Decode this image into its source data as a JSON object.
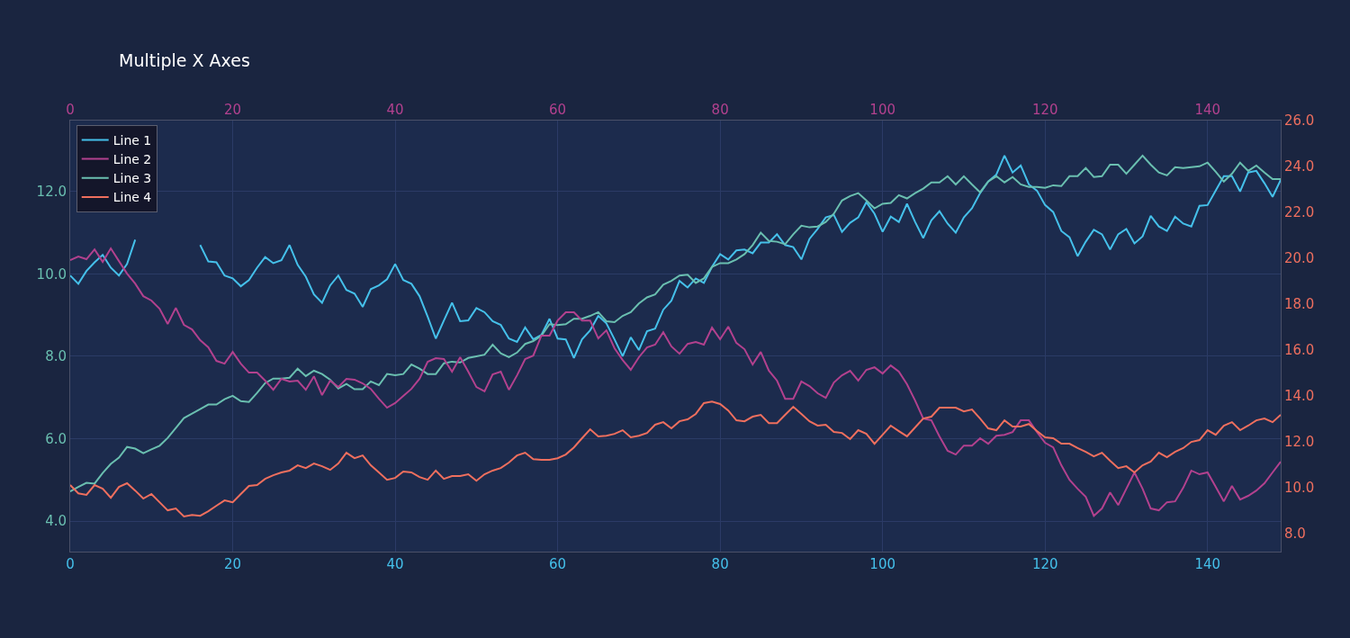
{
  "chart_data": {
    "type": "line",
    "title": "Multiple X Axes",
    "x": [
      0,
      1,
      2,
      3,
      4,
      5,
      6,
      7,
      8,
      9,
      10,
      11,
      12,
      13,
      14,
      15,
      16,
      17,
      18,
      19,
      20,
      21,
      22,
      23,
      24,
      25,
      26,
      27,
      28,
      29,
      30,
      31,
      32,
      33,
      34,
      35,
      36,
      37,
      38,
      39,
      40,
      41,
      42,
      43,
      44,
      45,
      46,
      47,
      48,
      49,
      50,
      51,
      52,
      53,
      54,
      55,
      56,
      57,
      58,
      59,
      60,
      61,
      62,
      63,
      64,
      65,
      66,
      67,
      68,
      69,
      70,
      71,
      72,
      73,
      74,
      75,
      76,
      77,
      78,
      79,
      80,
      81,
      82,
      83,
      84,
      85,
      86,
      87,
      88,
      89,
      90,
      91,
      92,
      93,
      94,
      95,
      96,
      97,
      98,
      99,
      100,
      101,
      102,
      103,
      104,
      105,
      106,
      107,
      108,
      109,
      110,
      111,
      112,
      113,
      114,
      115,
      116,
      117,
      118,
      119,
      120,
      121,
      122,
      123,
      124,
      125,
      126,
      127,
      128,
      129,
      130,
      131,
      132,
      133,
      134,
      135,
      136,
      137,
      138,
      139,
      140,
      141,
      142,
      143,
      144,
      145,
      146,
      147,
      148,
      149
    ],
    "series": [
      {
        "name": "Line 1",
        "color": "#45c0ea",
        "values": [
          9.96,
          9.76,
          10.07,
          10.28,
          10.46,
          10.15,
          9.96,
          10.24,
          10.83,
          null,
          null,
          null,
          null,
          null,
          null,
          null,
          10.7,
          10.3,
          10.28,
          9.96,
          9.89,
          9.7,
          9.85,
          10.15,
          10.41,
          10.26,
          10.33,
          10.7,
          10.22,
          9.93,
          9.5,
          9.3,
          9.72,
          9.96,
          9.61,
          9.52,
          9.2,
          9.63,
          9.72,
          9.87,
          10.24,
          9.85,
          9.76,
          9.46,
          8.96,
          8.43,
          8.87,
          9.3,
          8.85,
          8.87,
          9.17,
          9.07,
          8.85,
          8.76,
          8.43,
          8.35,
          8.7,
          8.41,
          8.52,
          8.91,
          8.43,
          8.41,
          7.96,
          8.41,
          8.63,
          8.98,
          8.8,
          8.41,
          8.0,
          8.46,
          8.15,
          8.61,
          8.67,
          9.13,
          9.35,
          9.83,
          9.67,
          9.89,
          9.78,
          10.17,
          10.48,
          10.35,
          10.57,
          10.59,
          10.5,
          10.76,
          10.76,
          10.96,
          10.7,
          10.65,
          10.35,
          10.85,
          11.09,
          11.37,
          11.43,
          11.02,
          11.24,
          11.37,
          11.74,
          11.46,
          11.02,
          11.39,
          11.26,
          11.7,
          11.26,
          10.87,
          11.3,
          11.52,
          11.22,
          11.0,
          11.37,
          11.59,
          11.96,
          12.24,
          12.41,
          12.87,
          12.46,
          12.63,
          12.17,
          12.02,
          11.67,
          11.5,
          11.04,
          10.89,
          10.43,
          10.78,
          11.07,
          10.96,
          10.59,
          10.96,
          11.09,
          10.74,
          10.91,
          11.41,
          11.15,
          11.04,
          11.39,
          11.22,
          11.15,
          11.65,
          11.67,
          12.02,
          12.37,
          12.37,
          12.0,
          12.46,
          12.5,
          12.2,
          11.87,
          12.28
        ]
      },
      {
        "name": "Line 2",
        "color": "#b2418e",
        "axis": "y2",
        "values": [
          19.92,
          20.08,
          19.96,
          20.39,
          19.84,
          20.43,
          19.88,
          19.33,
          18.9,
          18.35,
          18.16,
          17.8,
          17.14,
          17.84,
          17.1,
          16.9,
          16.43,
          16.12,
          15.53,
          15.41,
          15.92,
          15.41,
          15.02,
          15.02,
          14.67,
          14.27,
          14.75,
          14.63,
          14.67,
          14.27,
          14.86,
          14.04,
          14.67,
          14.39,
          14.75,
          14.71,
          14.55,
          14.31,
          13.88,
          13.49,
          13.69,
          14.0,
          14.31,
          14.75,
          15.49,
          15.65,
          15.61,
          15.06,
          15.69,
          15.06,
          14.39,
          14.2,
          14.94,
          15.06,
          14.27,
          14.9,
          15.61,
          15.76,
          16.63,
          16.63,
          17.29,
          17.65,
          17.65,
          17.29,
          17.29,
          16.51,
          16.86,
          16.08,
          15.57,
          15.14,
          15.69,
          16.12,
          16.24,
          16.78,
          16.16,
          15.84,
          16.27,
          16.35,
          16.24,
          16.98,
          16.47,
          17.02,
          16.31,
          16.04,
          15.37,
          15.92,
          15.1,
          14.67,
          13.88,
          13.88,
          14.63,
          14.43,
          14.12,
          13.92,
          14.59,
          14.9,
          15.1,
          14.67,
          15.14,
          15.25,
          14.98,
          15.33,
          15.06,
          14.51,
          13.8,
          13.02,
          12.94,
          12.24,
          11.61,
          11.45,
          11.84,
          11.84,
          12.16,
          11.92,
          12.27,
          12.31,
          12.43,
          12.94,
          12.94,
          12.43,
          11.96,
          11.76,
          10.98,
          10.35,
          9.96,
          9.61,
          8.78,
          9.1,
          9.8,
          9.25,
          9.96,
          10.67,
          9.96,
          9.1,
          9.02,
          9.37,
          9.41,
          10.0,
          10.75,
          10.59,
          10.67,
          10.04,
          9.41,
          10.08,
          9.49,
          9.65,
          9.88,
          10.2,
          10.67,
          11.14
        ]
      },
      {
        "name": "Line 3",
        "color": "#6abfb0",
        "values": [
          4.72,
          4.83,
          4.93,
          4.91,
          5.17,
          5.39,
          5.54,
          5.8,
          5.76,
          5.65,
          5.74,
          5.83,
          6.02,
          6.26,
          6.5,
          6.61,
          6.72,
          6.83,
          6.83,
          6.96,
          7.04,
          6.91,
          6.89,
          7.11,
          7.35,
          7.46,
          7.46,
          7.48,
          7.7,
          7.52,
          7.65,
          7.57,
          7.43,
          7.22,
          7.33,
          7.2,
          7.2,
          7.39,
          7.3,
          7.57,
          7.54,
          7.57,
          7.8,
          7.7,
          7.57,
          7.57,
          7.83,
          7.87,
          7.85,
          7.96,
          8.0,
          8.04,
          8.28,
          8.07,
          7.98,
          8.09,
          8.3,
          8.37,
          8.5,
          8.78,
          8.76,
          8.78,
          8.91,
          8.91,
          8.98,
          9.07,
          8.85,
          8.83,
          8.98,
          9.07,
          9.28,
          9.43,
          9.5,
          9.74,
          9.83,
          9.96,
          9.98,
          9.78,
          9.89,
          10.17,
          10.26,
          10.26,
          10.35,
          10.48,
          10.7,
          11.0,
          10.8,
          10.78,
          10.72,
          10.96,
          11.17,
          11.13,
          11.15,
          11.26,
          11.46,
          11.78,
          11.89,
          11.96,
          11.78,
          11.59,
          11.7,
          11.72,
          11.91,
          11.83,
          11.96,
          12.07,
          12.22,
          12.22,
          12.37,
          12.17,
          12.37,
          12.17,
          11.98,
          12.24,
          12.37,
          12.22,
          12.35,
          12.17,
          12.11,
          12.11,
          12.09,
          12.15,
          12.13,
          12.37,
          12.37,
          12.57,
          12.35,
          12.37,
          12.65,
          12.65,
          12.43,
          12.65,
          12.87,
          12.65,
          12.46,
          12.39,
          12.59,
          12.57,
          12.59,
          12.61,
          12.7,
          12.48,
          12.24,
          12.43,
          12.7,
          12.5,
          12.63,
          12.46,
          12.3,
          12.3
        ]
      },
      {
        "name": "Line 4",
        "color": "#ef6f5e",
        "axis": "y2",
        "values": [
          10.12,
          9.76,
          9.69,
          10.12,
          9.96,
          9.57,
          10.04,
          10.2,
          9.88,
          9.53,
          9.73,
          9.37,
          9.02,
          9.1,
          8.75,
          8.82,
          8.78,
          8.98,
          9.22,
          9.45,
          9.37,
          9.73,
          10.08,
          10.12,
          10.39,
          10.55,
          10.67,
          10.75,
          10.98,
          10.86,
          11.06,
          10.94,
          10.78,
          11.06,
          11.53,
          11.29,
          11.41,
          10.98,
          10.67,
          10.35,
          10.43,
          10.71,
          10.67,
          10.47,
          10.35,
          10.75,
          10.39,
          10.51,
          10.51,
          10.59,
          10.31,
          10.59,
          10.75,
          10.86,
          11.1,
          11.41,
          11.53,
          11.25,
          11.22,
          11.22,
          11.29,
          11.45,
          11.76,
          12.16,
          12.55,
          12.24,
          12.27,
          12.35,
          12.51,
          12.2,
          12.27,
          12.39,
          12.75,
          12.86,
          12.59,
          12.9,
          12.98,
          13.22,
          13.69,
          13.76,
          13.65,
          13.37,
          12.94,
          12.9,
          13.1,
          13.18,
          12.82,
          12.82,
          13.18,
          13.53,
          13.22,
          12.9,
          12.71,
          12.75,
          12.43,
          12.39,
          12.12,
          12.51,
          12.35,
          11.92,
          12.31,
          12.71,
          12.47,
          12.24,
          12.63,
          13.02,
          13.1,
          13.49,
          13.49,
          13.49,
          13.33,
          13.41,
          13.02,
          12.59,
          12.51,
          12.94,
          12.67,
          12.67,
          12.78,
          12.47,
          12.2,
          12.16,
          11.92,
          11.92,
          11.73,
          11.57,
          11.37,
          11.53,
          11.18,
          10.86,
          10.94,
          10.67,
          10.98,
          11.14,
          11.53,
          11.33,
          11.57,
          11.73,
          12.0,
          12.08,
          12.51,
          12.31,
          12.71,
          12.86,
          12.51,
          12.71,
          12.94,
          13.02,
          12.86,
          13.18
        ]
      }
    ],
    "xlim": [
      0,
      149
    ],
    "xticks": [
      0,
      20,
      40,
      60,
      80,
      100,
      120,
      140
    ],
    "x2lim": [
      0,
      149
    ],
    "x2ticks": [
      0,
      20,
      40,
      60,
      80,
      100,
      120,
      140
    ],
    "ylim": [
      3.26,
      13.72
    ],
    "yticks": [
      {
        "value": 4,
        "label": "4.0"
      },
      {
        "value": 6,
        "label": "6.0"
      },
      {
        "value": 8,
        "label": "8.0"
      },
      {
        "value": 10,
        "label": "10.0"
      },
      {
        "value": 12,
        "label": "12.0"
      }
    ],
    "y2lim": [
      7.22,
      26.0
    ],
    "y2ticks": [
      {
        "value": 8,
        "label": "8.0"
      },
      {
        "value": 10,
        "label": "10.0"
      },
      {
        "value": 12,
        "label": "12.0"
      },
      {
        "value": 14,
        "label": "14.0"
      },
      {
        "value": 16,
        "label": "16.0"
      },
      {
        "value": 18,
        "label": "18.0"
      },
      {
        "value": 20,
        "label": "20.0"
      },
      {
        "value": 22,
        "label": "22.0"
      },
      {
        "value": 24,
        "label": "24.0"
      },
      {
        "value": 26,
        "label": "26.0"
      }
    ],
    "grid": true,
    "legend": "top left",
    "marker": "none",
    "line_style": "solid"
  }
}
